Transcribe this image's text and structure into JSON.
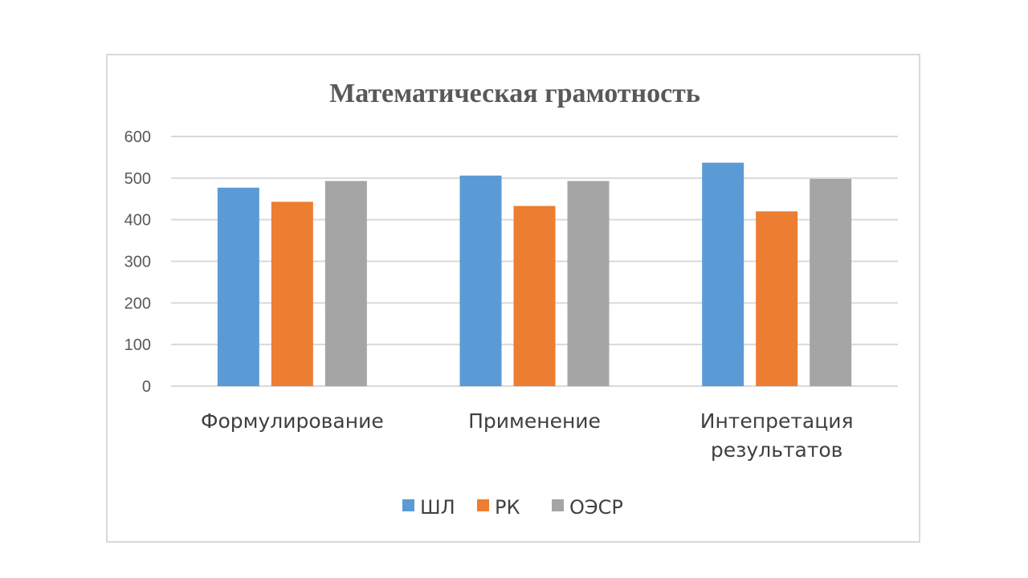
{
  "chart_data": {
    "type": "bar",
    "title": "Математическая грамотность",
    "categories": [
      [
        "Формулирование"
      ],
      [
        "Применение"
      ],
      [
        "Интепретация",
        "результатов"
      ]
    ],
    "series": [
      {
        "name": "ШЛ",
        "values": [
          477,
          506,
          537
        ],
        "color": "#5b9bd5"
      },
      {
        "name": "РК",
        "values": [
          443,
          433,
          420
        ],
        "color": "#ed7d31"
      },
      {
        "name": "ОЭСР",
        "values": [
          493,
          493,
          498
        ],
        "color": "#a5a5a5"
      }
    ],
    "ylim": [
      0,
      600
    ],
    "yticks": [
      0,
      100,
      200,
      300,
      400,
      500,
      600
    ],
    "grid": true,
    "legend": "bottom",
    "colors": {
      "grid": "#d9d9d9",
      "axis": "#d9d9d9",
      "text": "#595959"
    }
  }
}
